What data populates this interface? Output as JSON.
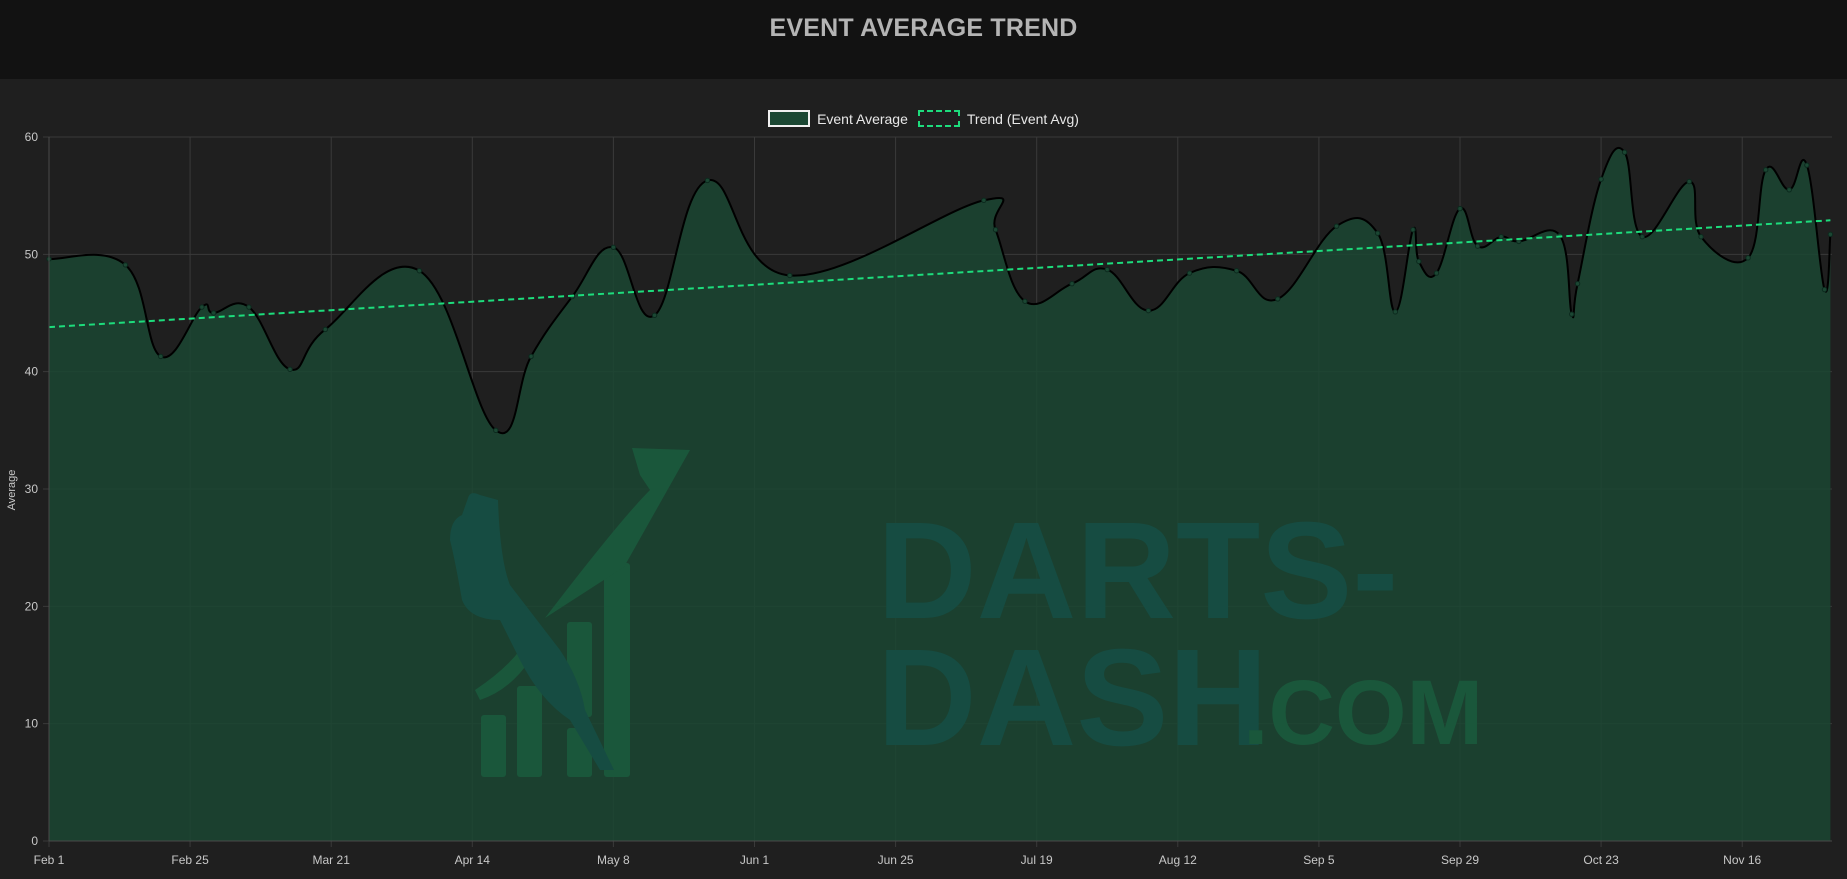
{
  "header": {
    "title": "EVENT AVERAGE TREND"
  },
  "legend": {
    "items": [
      {
        "label": "Event Average",
        "style": "solid-fill"
      },
      {
        "label": "Trend (Event Avg)",
        "style": "dashed"
      }
    ]
  },
  "watermark": {
    "line1": "DARTS-",
    "line2": "DASH",
    "suffix": ".COM"
  },
  "colors": {
    "header_bg": "#121212",
    "page_bg": "#1f1f1f",
    "area_fill": "#1b4733",
    "line": "#000000",
    "trend": "#1ddc7c",
    "grid": "#3a3a3a",
    "tick_text": "#c8c8c8"
  },
  "chart_data": {
    "type": "line",
    "title": "EVENT AVERAGE TREND",
    "xlabel": "",
    "ylabel": "Average",
    "ylim": [
      0,
      60
    ],
    "yticks": [
      0,
      10,
      20,
      30,
      40,
      50,
      60
    ],
    "xticks": [
      "Feb 1",
      "Feb 25",
      "Mar 21",
      "Apr 14",
      "May 8",
      "Jun 1",
      "Jun 25",
      "Jul 19",
      "Aug 12",
      "Sep 5",
      "Sep 29",
      "Oct 23",
      "Nov 16"
    ],
    "xtick_step_days": 24,
    "x_range_days": [
      0,
      303
    ],
    "grid": true,
    "legend_position": "top",
    "series": [
      {
        "name": "Event Average",
        "fill": true,
        "smooth": true,
        "day_offset": [
          0,
          13,
          19,
          26,
          28,
          34,
          41,
          47,
          63,
          76,
          82,
          89,
          96,
          103,
          112,
          126,
          159,
          161,
          166,
          174,
          180,
          187,
          194,
          202,
          209,
          219,
          226,
          229,
          232,
          233,
          236,
          240,
          243,
          247,
          250,
          257,
          259,
          260,
          264,
          268,
          271,
          279,
          281,
          289,
          292,
          296,
          299,
          302,
          303
        ],
        "values": [
          49.6,
          49.1,
          41.3,
          45.5,
          45.0,
          45.5,
          40.2,
          43.6,
          48.6,
          35.0,
          41.3,
          46.4,
          50.6,
          44.8,
          56.3,
          48.2,
          54.6,
          52.1,
          46.0,
          47.5,
          48.7,
          45.2,
          48.4,
          48.6,
          46.2,
          52.4,
          51.8,
          45.1,
          52.1,
          49.4,
          48.4,
          53.9,
          50.7,
          51.5,
          51.1,
          51.6,
          44.9,
          47.5,
          56.4,
          58.7,
          51.5,
          56.2,
          51.5,
          49.7,
          57.2,
          55.5,
          57.6,
          47.0,
          51.7
        ]
      },
      {
        "name": "Trend (Event Avg)",
        "fill": false,
        "dashed": true,
        "day_offset": [
          0,
          303
        ],
        "values": [
          43.8,
          52.9
        ]
      }
    ]
  }
}
